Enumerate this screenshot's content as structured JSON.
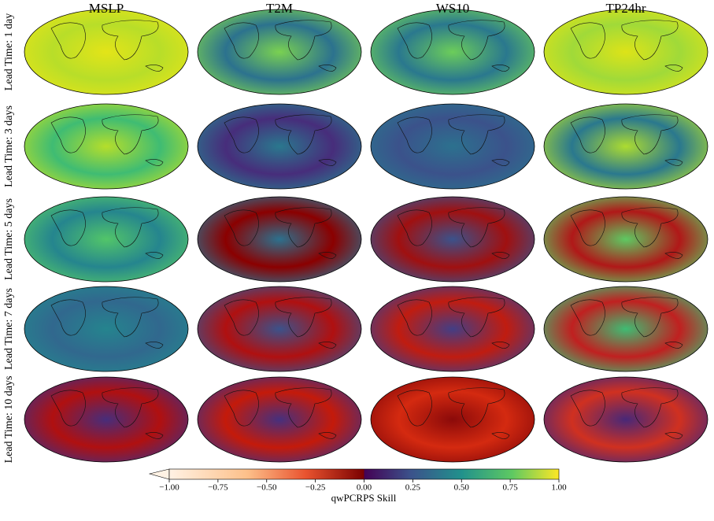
{
  "columns": [
    "MSLP",
    "T2M",
    "WS10",
    "TP24hr"
  ],
  "rows": [
    "Lead Time: 1 day",
    "Lead Time: 3 days",
    "Lead Time: 5 days",
    "Lead Time: 7 days",
    "Lead Time: 10 days"
  ],
  "colorbar": {
    "label": "qwPCRPS Skill",
    "lim": [
      -1,
      1
    ],
    "ticks": [
      {
        "value": -1,
        "label": "−1.00"
      },
      {
        "value": -0.75,
        "label": "−0.75"
      },
      {
        "value": -0.5,
        "label": "−0.50"
      },
      {
        "value": -0.25,
        "label": "−0.25"
      },
      {
        "value": 0,
        "label": "0.00"
      },
      {
        "value": 0.25,
        "label": "0.25"
      },
      {
        "value": 0.5,
        "label": "0.50"
      },
      {
        "value": 0.75,
        "label": "0.75"
      },
      {
        "value": 1,
        "label": "1.00"
      }
    ]
  }
}
